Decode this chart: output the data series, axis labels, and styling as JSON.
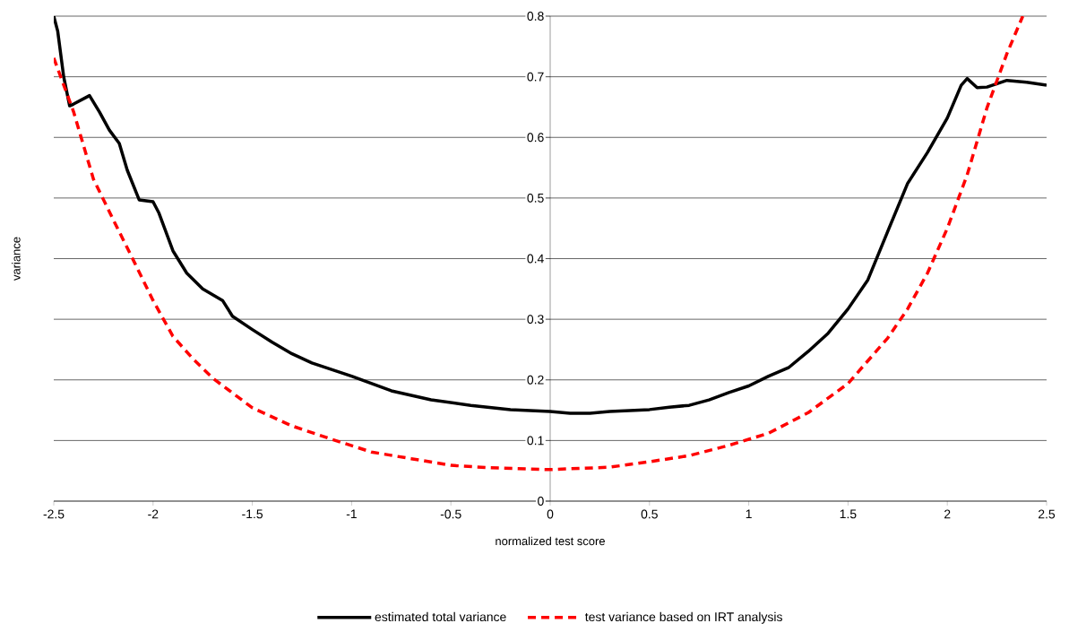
{
  "chart_data": {
    "type": "line",
    "xlabel": "normalized test score",
    "ylabel": "variance",
    "xlim": [
      -2.5,
      2.5
    ],
    "ylim": [
      0,
      0.8
    ],
    "xticks": [
      -2.5,
      -2,
      -1.5,
      -1,
      -0.5,
      0,
      0.5,
      1,
      1.5,
      2,
      2.5
    ],
    "yticks": [
      0,
      0.1,
      0.2,
      0.3,
      0.4,
      0.5,
      0.6,
      0.7,
      0.8
    ],
    "grid": "y",
    "legend": "bottom",
    "series": [
      {
        "name": "estimated total variance",
        "color": "#000000",
        "line_style": "solid",
        "x": [
          -2.5,
          -2.48,
          -2.45,
          -2.42,
          -2.4,
          -2.32,
          -2.27,
          -2.22,
          -2.17,
          -2.13,
          -2.07,
          -2.0,
          -1.97,
          -1.9,
          -1.83,
          -1.75,
          -1.65,
          -1.6,
          -1.5,
          -1.4,
          -1.3,
          -1.2,
          -1.0,
          -0.8,
          -0.6,
          -0.4,
          -0.2,
          0,
          0.1,
          0.2,
          0.3,
          0.5,
          0.6,
          0.7,
          0.8,
          0.9,
          1.0,
          1.1,
          1.2,
          1.3,
          1.4,
          1.5,
          1.6,
          1.7,
          1.8,
          1.9,
          2.0,
          2.07,
          2.1,
          2.15,
          2.2,
          2.3,
          2.4,
          2.5
        ],
        "values": [
          0.8,
          0.775,
          0.7,
          0.652,
          0.655,
          0.669,
          0.642,
          0.612,
          0.59,
          0.546,
          0.497,
          0.494,
          0.475,
          0.413,
          0.376,
          0.35,
          0.331,
          0.305,
          0.283,
          0.262,
          0.243,
          0.228,
          0.206,
          0.182,
          0.167,
          0.158,
          0.151,
          0.148,
          0.145,
          0.145,
          0.148,
          0.151,
          0.155,
          0.158,
          0.167,
          0.179,
          0.19,
          0.206,
          0.22,
          0.247,
          0.277,
          0.317,
          0.365,
          0.445,
          0.524,
          0.575,
          0.632,
          0.686,
          0.697,
          0.682,
          0.683,
          0.694,
          0.691,
          0.686
        ]
      },
      {
        "name": "test variance based on IRT analysis",
        "color": "#ff0000",
        "line_style": "dashed",
        "x": [
          -2.5,
          -2.4,
          -2.3,
          -2.2,
          -2.1,
          -2.0,
          -1.9,
          -1.8,
          -1.7,
          -1.5,
          -1.3,
          -1.1,
          -0.9,
          -0.7,
          -0.5,
          -0.3,
          0,
          0.3,
          0.5,
          0.7,
          0.9,
          1.1,
          1.3,
          1.5,
          1.7,
          1.8,
          1.9,
          2.0,
          2.1,
          2.2,
          2.3,
          2.38
        ],
        "values": [
          0.731,
          0.642,
          0.531,
          0.464,
          0.398,
          0.331,
          0.272,
          0.235,
          0.203,
          0.154,
          0.124,
          0.102,
          0.081,
          0.07,
          0.059,
          0.055,
          0.052,
          0.056,
          0.065,
          0.075,
          0.092,
          0.112,
          0.146,
          0.194,
          0.269,
          0.317,
          0.376,
          0.45,
          0.538,
          0.649,
          0.738,
          0.8
        ]
      }
    ]
  }
}
